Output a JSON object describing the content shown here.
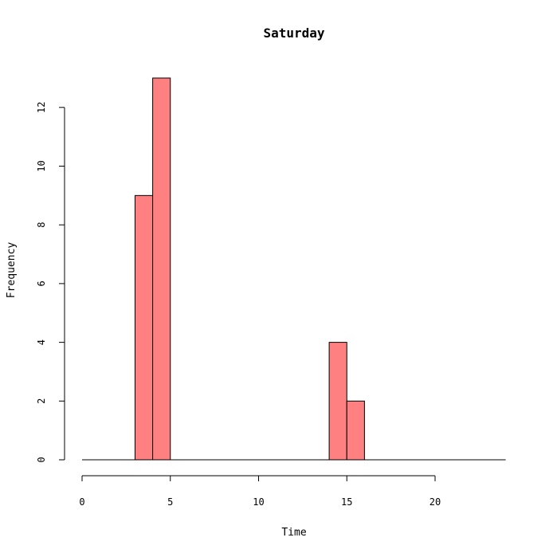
{
  "chart_data": {
    "type": "bar",
    "title": "Saturday",
    "xlabel": "Time",
    "ylabel": "Frequency",
    "x_bins": [
      [
        0,
        1
      ],
      [
        1,
        2
      ],
      [
        2,
        3
      ],
      [
        3,
        4
      ],
      [
        4,
        5
      ],
      [
        5,
        6
      ],
      [
        6,
        7
      ],
      [
        7,
        8
      ],
      [
        8,
        9
      ],
      [
        9,
        10
      ],
      [
        10,
        11
      ],
      [
        11,
        12
      ],
      [
        12,
        13
      ],
      [
        13,
        14
      ],
      [
        14,
        15
      ],
      [
        15,
        16
      ],
      [
        16,
        17
      ],
      [
        17,
        18
      ],
      [
        18,
        19
      ],
      [
        19,
        20
      ],
      [
        20,
        21
      ],
      [
        21,
        22
      ],
      [
        22,
        23
      ],
      [
        23,
        24
      ]
    ],
    "values": [
      0,
      0,
      0,
      9,
      13,
      0,
      0,
      0,
      0,
      0,
      0,
      0,
      0,
      0,
      4,
      2,
      0,
      0,
      0,
      0,
      0,
      0,
      0,
      0
    ],
    "xlim": [
      0,
      24
    ],
    "ylim": [
      0,
      13
    ],
    "x_ticks": [
      0,
      5,
      10,
      15,
      20
    ],
    "y_ticks": [
      0,
      2,
      4,
      6,
      8,
      10,
      12
    ],
    "bar_color": "#ff8080",
    "grid": false
  }
}
